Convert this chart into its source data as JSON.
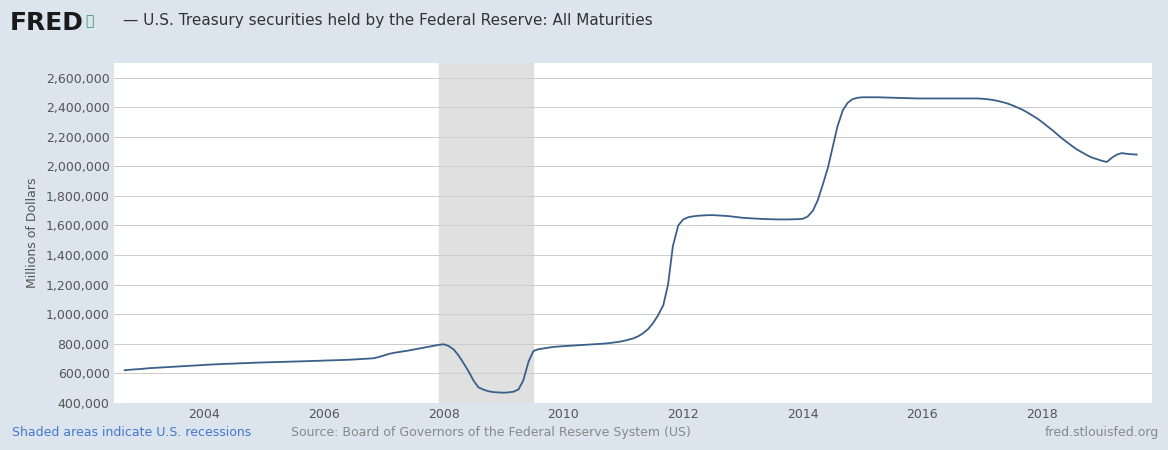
{
  "title": "— U.S. Treasury securities held by the Federal Reserve: All Maturities",
  "ylabel": "Millions of Dollars",
  "background_color": "#dce4ed",
  "plot_bg_color": "#ffffff",
  "line_color": "#3a5f8a",
  "recession_color": "#e0e0e0",
  "recession_alpha": 1.0,
  "recession_start": 2007.9167,
  "recession_end": 2009.5,
  "ylim": [
    400000,
    2700000
  ],
  "yticks": [
    400000,
    600000,
    800000,
    1000000,
    1200000,
    1400000,
    1600000,
    1800000,
    2000000,
    2200000,
    2400000,
    2600000
  ],
  "xlim_start": 2002.5,
  "xlim_end": 2019.83,
  "xtick_years": [
    2004,
    2006,
    2008,
    2010,
    2012,
    2014,
    2016,
    2018
  ],
  "fred_text": "FRED",
  "source_text": "Source: Board of Governors of the Federal Reserve System (US)",
  "recession_label": "Shaded areas indicate U.S. recessions",
  "url_text": "fred.stlouisfed.org",
  "data_x": [
    2002.67,
    2002.75,
    2002.83,
    2002.92,
    2003.0,
    2003.08,
    2003.17,
    2003.25,
    2003.33,
    2003.42,
    2003.5,
    2003.58,
    2003.67,
    2003.75,
    2003.83,
    2003.92,
    2004.0,
    2004.08,
    2004.17,
    2004.25,
    2004.33,
    2004.42,
    2004.5,
    2004.58,
    2004.67,
    2004.75,
    2004.83,
    2004.92,
    2005.0,
    2005.08,
    2005.17,
    2005.25,
    2005.33,
    2005.42,
    2005.5,
    2005.58,
    2005.67,
    2005.75,
    2005.83,
    2005.92,
    2006.0,
    2006.08,
    2006.17,
    2006.25,
    2006.33,
    2006.42,
    2006.5,
    2006.58,
    2006.67,
    2006.75,
    2006.83,
    2006.92,
    2007.0,
    2007.08,
    2007.17,
    2007.25,
    2007.33,
    2007.42,
    2007.5,
    2007.58,
    2007.67,
    2007.75,
    2007.83,
    2007.92,
    2008.0,
    2008.08,
    2008.17,
    2008.25,
    2008.33,
    2008.42,
    2008.5,
    2008.58,
    2008.67,
    2008.75,
    2008.83,
    2008.92,
    2009.0,
    2009.08,
    2009.17,
    2009.25,
    2009.33,
    2009.42,
    2009.5,
    2009.58,
    2009.67,
    2009.75,
    2009.83,
    2009.92,
    2010.0,
    2010.08,
    2010.17,
    2010.25,
    2010.33,
    2010.42,
    2010.5,
    2010.58,
    2010.67,
    2010.75,
    2010.83,
    2010.92,
    2011.0,
    2011.08,
    2011.17,
    2011.25,
    2011.33,
    2011.42,
    2011.5,
    2011.58,
    2011.67,
    2011.75,
    2011.83,
    2011.92,
    2012.0,
    2012.08,
    2012.17,
    2012.25,
    2012.33,
    2012.42,
    2012.5,
    2012.58,
    2012.67,
    2012.75,
    2012.83,
    2012.92,
    2013.0,
    2013.08,
    2013.17,
    2013.25,
    2013.33,
    2013.42,
    2013.5,
    2013.58,
    2013.67,
    2013.75,
    2013.83,
    2013.92,
    2014.0,
    2014.08,
    2014.17,
    2014.25,
    2014.33,
    2014.42,
    2014.5,
    2014.58,
    2014.67,
    2014.75,
    2014.83,
    2014.92,
    2015.0,
    2015.08,
    2015.17,
    2015.25,
    2015.33,
    2015.42,
    2015.5,
    2015.58,
    2015.67,
    2015.75,
    2015.83,
    2015.92,
    2016.0,
    2016.08,
    2016.17,
    2016.25,
    2016.33,
    2016.42,
    2016.5,
    2016.58,
    2016.67,
    2016.75,
    2016.83,
    2016.92,
    2017.0,
    2017.08,
    2017.17,
    2017.25,
    2017.33,
    2017.42,
    2017.5,
    2017.58,
    2017.67,
    2017.75,
    2017.83,
    2017.92,
    2018.0,
    2018.08,
    2018.17,
    2018.25,
    2018.33,
    2018.42,
    2018.5,
    2018.58,
    2018.67,
    2018.75,
    2018.83,
    2018.92,
    2019.0,
    2019.08,
    2019.17,
    2019.25,
    2019.33,
    2019.42,
    2019.5,
    2019.58
  ],
  "data_y": [
    620000,
    623000,
    626000,
    628000,
    631000,
    634000,
    636000,
    638000,
    640000,
    642000,
    644000,
    646000,
    648000,
    650000,
    652000,
    654000,
    656000,
    658000,
    660000,
    661000,
    663000,
    664000,
    665000,
    667000,
    668000,
    669000,
    671000,
    672000,
    673000,
    674000,
    675000,
    676000,
    677000,
    678000,
    679000,
    680000,
    681000,
    682000,
    683000,
    684000,
    685000,
    686000,
    687000,
    688000,
    690000,
    691000,
    693000,
    695000,
    697000,
    699000,
    701000,
    710000,
    720000,
    730000,
    738000,
    743000,
    748000,
    754000,
    760000,
    766000,
    772000,
    778000,
    785000,
    792000,
    796000,
    785000,
    760000,
    720000,
    670000,
    610000,
    550000,
    505000,
    488000,
    478000,
    472000,
    470000,
    468000,
    470000,
    475000,
    490000,
    550000,
    680000,
    750000,
    762000,
    768000,
    773000,
    778000,
    781000,
    783000,
    785000,
    787000,
    789000,
    791000,
    793000,
    795000,
    797000,
    800000,
    803000,
    807000,
    812000,
    818000,
    826000,
    836000,
    850000,
    870000,
    900000,
    940000,
    990000,
    1060000,
    1200000,
    1460000,
    1600000,
    1640000,
    1655000,
    1662000,
    1666000,
    1668000,
    1670000,
    1670000,
    1668000,
    1666000,
    1664000,
    1660000,
    1655000,
    1652000,
    1650000,
    1648000,
    1646000,
    1644000,
    1643000,
    1642000,
    1641000,
    1641000,
    1641000,
    1642000,
    1643000,
    1645000,
    1660000,
    1700000,
    1770000,
    1870000,
    1990000,
    2130000,
    2270000,
    2380000,
    2430000,
    2455000,
    2465000,
    2468000,
    2468000,
    2468000,
    2468000,
    2467000,
    2466000,
    2465000,
    2464000,
    2463000,
    2462000,
    2461000,
    2460000,
    2460000,
    2460000,
    2460000,
    2460000,
    2460000,
    2460000,
    2460000,
    2460000,
    2460000,
    2460000,
    2460000,
    2460000,
    2458000,
    2455000,
    2450000,
    2444000,
    2436000,
    2426000,
    2414000,
    2400000,
    2384000,
    2366000,
    2346000,
    2324000,
    2300000,
    2274000,
    2246000,
    2218000,
    2190000,
    2163000,
    2138000,
    2115000,
    2094000,
    2076000,
    2060000,
    2048000,
    2038000,
    2030000,
    2060000,
    2080000,
    2090000,
    2085000,
    2082000,
    2080000
  ]
}
